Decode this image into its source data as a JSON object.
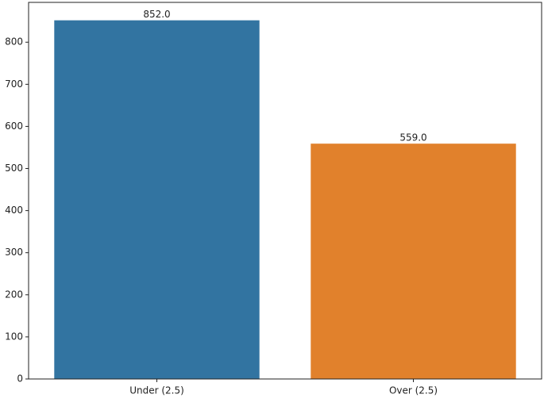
{
  "chart_data": {
    "type": "bar",
    "categories": [
      "Under (2.5)",
      "Over (2.5)"
    ],
    "values": [
      852,
      559
    ],
    "value_labels": [
      "852.0",
      "559.0"
    ],
    "colors": [
      "#3274a1",
      "#e1812c"
    ],
    "ylim": [
      0,
      894.6
    ],
    "yticks": [
      0,
      100,
      200,
      300,
      400,
      500,
      600,
      700,
      800
    ],
    "grid": false
  }
}
